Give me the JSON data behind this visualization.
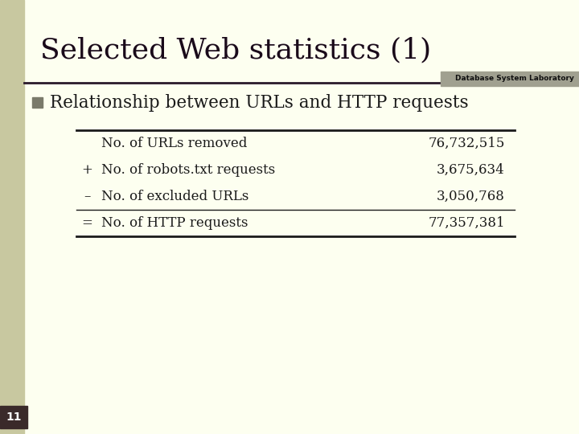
{
  "title": "Selected Web statistics (1)",
  "subtitle": "Database System Laboratory",
  "bullet_text": "Relationship between URLs and HTTP requests",
  "table_rows": [
    {
      "symbol": "",
      "label": "No. of URLs removed",
      "value": "76,732,515"
    },
    {
      "symbol": "+",
      "label": "No. of robots.txt requests",
      "value": "3,675,634"
    },
    {
      "symbol": "–",
      "label": "No. of excluded URLs",
      "value": "3,050,768"
    },
    {
      "symbol": "=",
      "label": "No. of HTTP requests",
      "value": "77,357,381"
    }
  ],
  "bg_color": "#fdfff0",
  "left_strip_color": "#c8c8a0",
  "header_line_color": "#2a1a2a",
  "subtitle_bg_color": "#a0a090",
  "bullet_square_color": "#7a7a6a",
  "table_line_color": "#1a1a1a",
  "title_color": "#1a0a1a",
  "text_color": "#1a1a1a",
  "slide_number": "11",
  "slide_number_bg": "#3a2a2a",
  "slide_number_color": "#ffffff"
}
